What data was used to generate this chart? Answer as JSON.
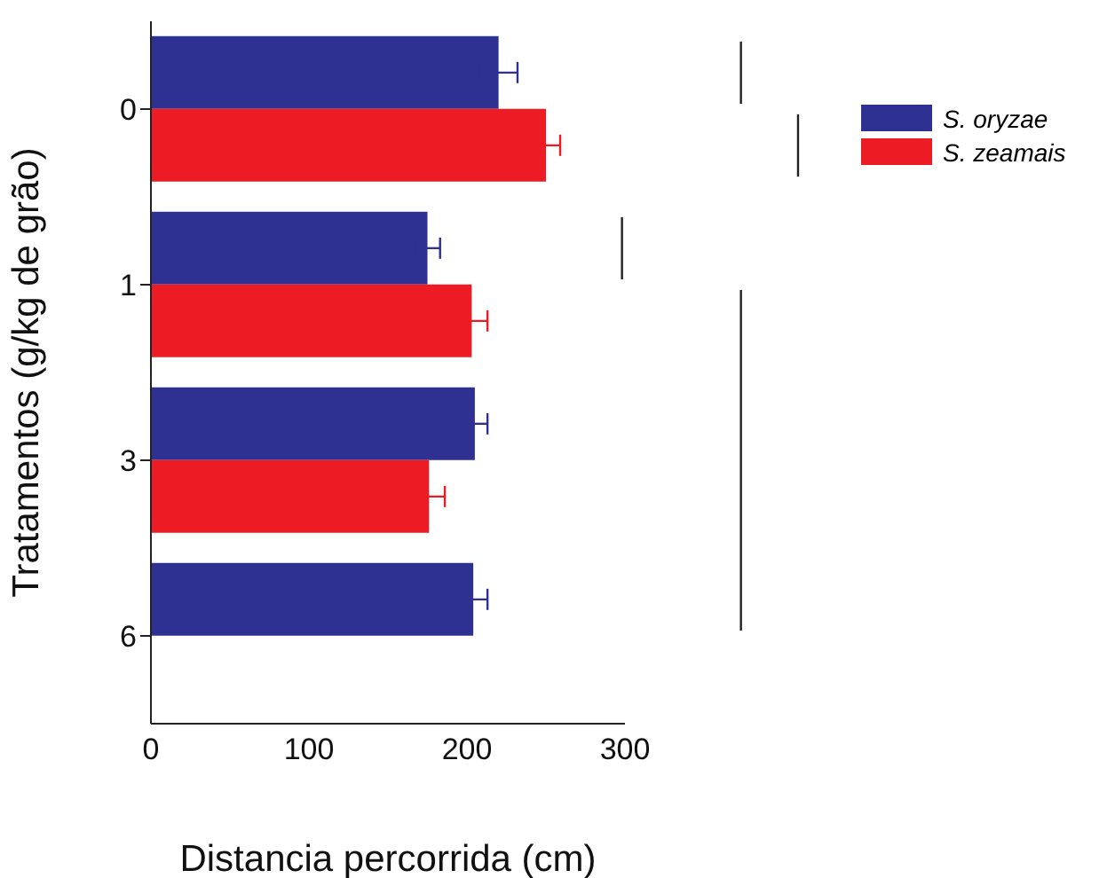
{
  "chart_data": {
    "type": "bar",
    "orientation": "horizontal",
    "xlabel": "Distancia percorrida (cm)",
    "ylabel": "Tratamentos (g/kg de grão)",
    "categories": [
      "0",
      "1",
      "3",
      "6"
    ],
    "series": [
      {
        "name": "S. oryzae",
        "color": "#2e3192",
        "values": [
          220,
          175,
          205,
          204
        ],
        "errors": [
          12,
          8,
          8,
          9
        ]
      },
      {
        "name": "S. zeamais",
        "color": "#ed1c24",
        "values": [
          250,
          203,
          176,
          null
        ],
        "errors": [
          9,
          10,
          10,
          null
        ]
      }
    ],
    "xlim": [
      0,
      300
    ],
    "xticks": [
      0,
      100,
      200,
      300
    ],
    "legend": "top right"
  }
}
